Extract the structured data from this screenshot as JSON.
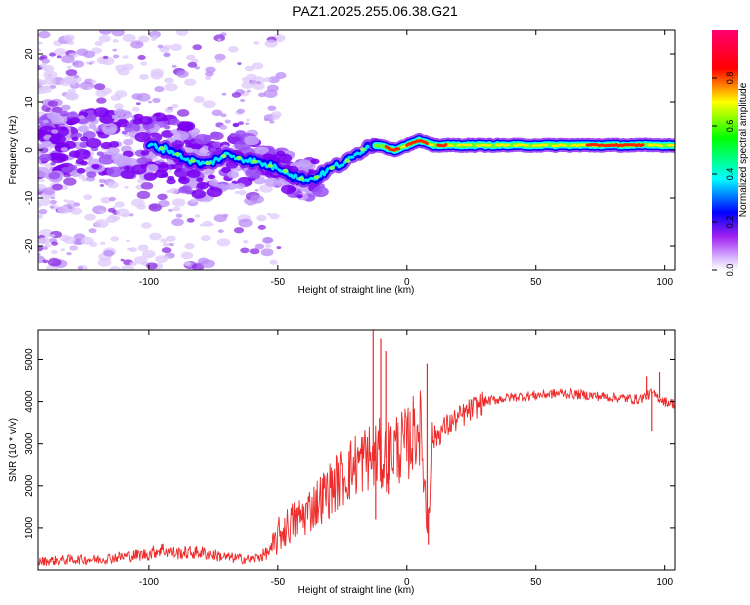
{
  "figure_title": "PAZ1.2025.255.06.38.G21",
  "chart_data": [
    {
      "type": "heatmap",
      "xlabel": "Height of straight line (km)",
      "ylabel": "Frequency (Hz)",
      "xlim": [
        -143,
        104
      ],
      "ylim": [
        -25,
        25
      ],
      "x_ticks": [
        -100,
        -50,
        0,
        50,
        100
      ],
      "y_ticks": [
        -20,
        -10,
        0,
        10,
        20
      ],
      "colorbar": {
        "label": "Normalized spectral amplitude",
        "range": [
          0,
          1
        ],
        "ticks": [
          0.0,
          0.2,
          0.4,
          0.6,
          0.8
        ],
        "tick_labels": [
          "0.0",
          "0.2",
          "0.4",
          "0.6",
          "0.8"
        ],
        "colors": [
          "#ffffff",
          "#a020f0",
          "#0000ff",
          "#00ffff",
          "#00ff00",
          "#ffff00",
          "#ff0000",
          "#ff00ff"
        ]
      },
      "ridge": [
        [
          -100,
          1
        ],
        [
          -92,
          0
        ],
        [
          -85,
          -2
        ],
        [
          -78,
          -3
        ],
        [
          -70,
          -1
        ],
        [
          -62,
          -2
        ],
        [
          -55,
          -3
        ],
        [
          -48,
          -4
        ],
        [
          -42,
          -6
        ],
        [
          -36,
          -6
        ],
        [
          -30,
          -4
        ],
        [
          -22,
          -2
        ],
        [
          -15,
          1
        ],
        [
          -10,
          1
        ],
        [
          -5,
          0
        ],
        [
          0,
          1
        ],
        [
          5,
          2
        ],
        [
          10,
          1
        ],
        [
          15,
          1
        ],
        [
          30,
          1
        ],
        [
          60,
          1
        ],
        [
          90,
          1
        ],
        [
          104,
          1
        ]
      ]
    },
    {
      "type": "line",
      "xlabel": "Height of straight line (km)",
      "ylabel": "SNR (10 * v/v)",
      "xlim": [
        -143,
        104
      ],
      "ylim": [
        0,
        5700
      ],
      "x_ticks": [
        -100,
        -50,
        0,
        50,
        100
      ],
      "y_ticks": [
        1000,
        2000,
        3000,
        4000,
        5000
      ],
      "color": "#ee2a2a",
      "series": [
        {
          "name": "SNR",
          "x": [
            -143,
            -130,
            -120,
            -110,
            -100,
            -95,
            -90,
            -80,
            -70,
            -60,
            -55,
            -52,
            -50,
            -45,
            -40,
            -35,
            -30,
            -25,
            -20,
            -15,
            -13,
            -11,
            -9,
            -5,
            0,
            5,
            7,
            8,
            10,
            15,
            20,
            25,
            30,
            35,
            40,
            50,
            60,
            70,
            80,
            90,
            95,
            100,
            104
          ],
          "y": [
            200,
            250,
            250,
            320,
            380,
            500,
            400,
            420,
            300,
            250,
            380,
            500,
            800,
            1100,
            1300,
            1600,
            1900,
            2200,
            2500,
            2700,
            2600,
            2800,
            2600,
            2900,
            2950,
            3500,
            2100,
            900,
            3100,
            3400,
            3600,
            3800,
            4000,
            4050,
            4100,
            4150,
            4200,
            4150,
            4100,
            4050,
            4200,
            4000,
            3950
          ]
        }
      ],
      "spikes": [
        [
          -13,
          5700
        ],
        [
          -12,
          1200
        ],
        [
          -10,
          5500
        ],
        [
          -8,
          5200
        ],
        [
          -7,
          1800
        ],
        [
          8,
          4900
        ],
        [
          8.5,
          600
        ],
        [
          93,
          4600
        ],
        [
          95,
          3300
        ],
        [
          98,
          4700
        ]
      ]
    }
  ]
}
